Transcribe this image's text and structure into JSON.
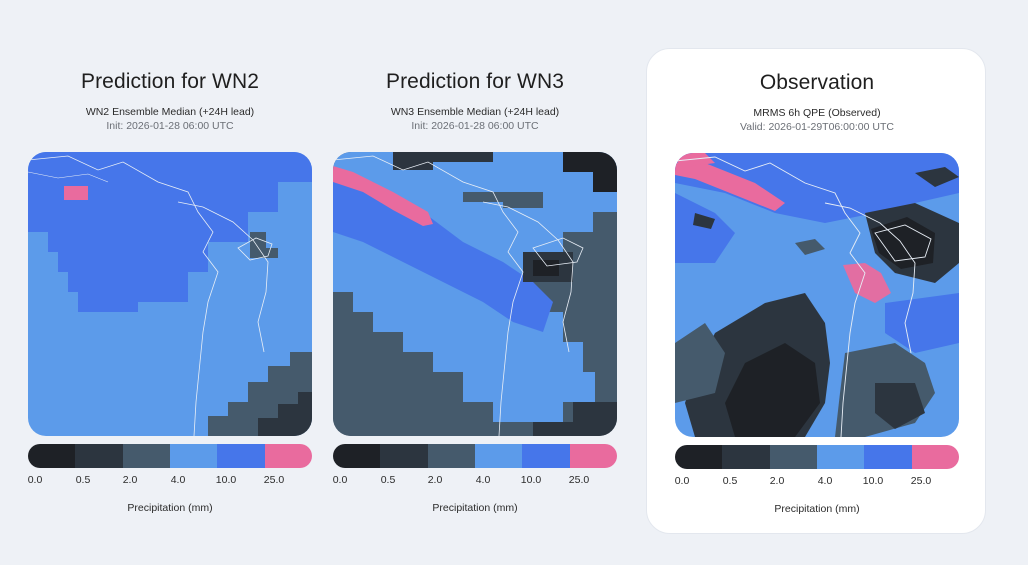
{
  "colors": {
    "scale": [
      "#1e2126",
      "#2c353f",
      "#455a6c",
      "#5c9bea",
      "#4676ea",
      "#e96b9e"
    ],
    "coast": "#e8eef6"
  },
  "panels": [
    {
      "title": "Prediction for WN2",
      "subtitle": "WN2 Ensemble Median (+24H lead)",
      "meta": "Init: 2026-01-28 06:00 UTC",
      "scale_labels": [
        "0.0",
        "0.5",
        "2.0",
        "4.0",
        "10.0",
        "25.0"
      ],
      "unit": "Precipitation (mm)"
    },
    {
      "title": "Prediction for WN3",
      "subtitle": "WN3 Ensemble Median (+24H lead)",
      "meta": "Init: 2026-01-28 06:00 UTC",
      "scale_labels": [
        "0.0",
        "0.5",
        "2.0",
        "4.0",
        "10.0",
        "25.0"
      ],
      "unit": "Precipitation (mm)"
    },
    {
      "title": "Observation",
      "subtitle": "MRMS 6h QPE (Observed)",
      "meta": "Valid: 2026-01-29T06:00:00 UTC",
      "scale_labels": [
        "0.0",
        "0.5",
        "2.0",
        "4.0",
        "10.0",
        "25.0"
      ],
      "unit": "Precipitation (mm)"
    }
  ]
}
